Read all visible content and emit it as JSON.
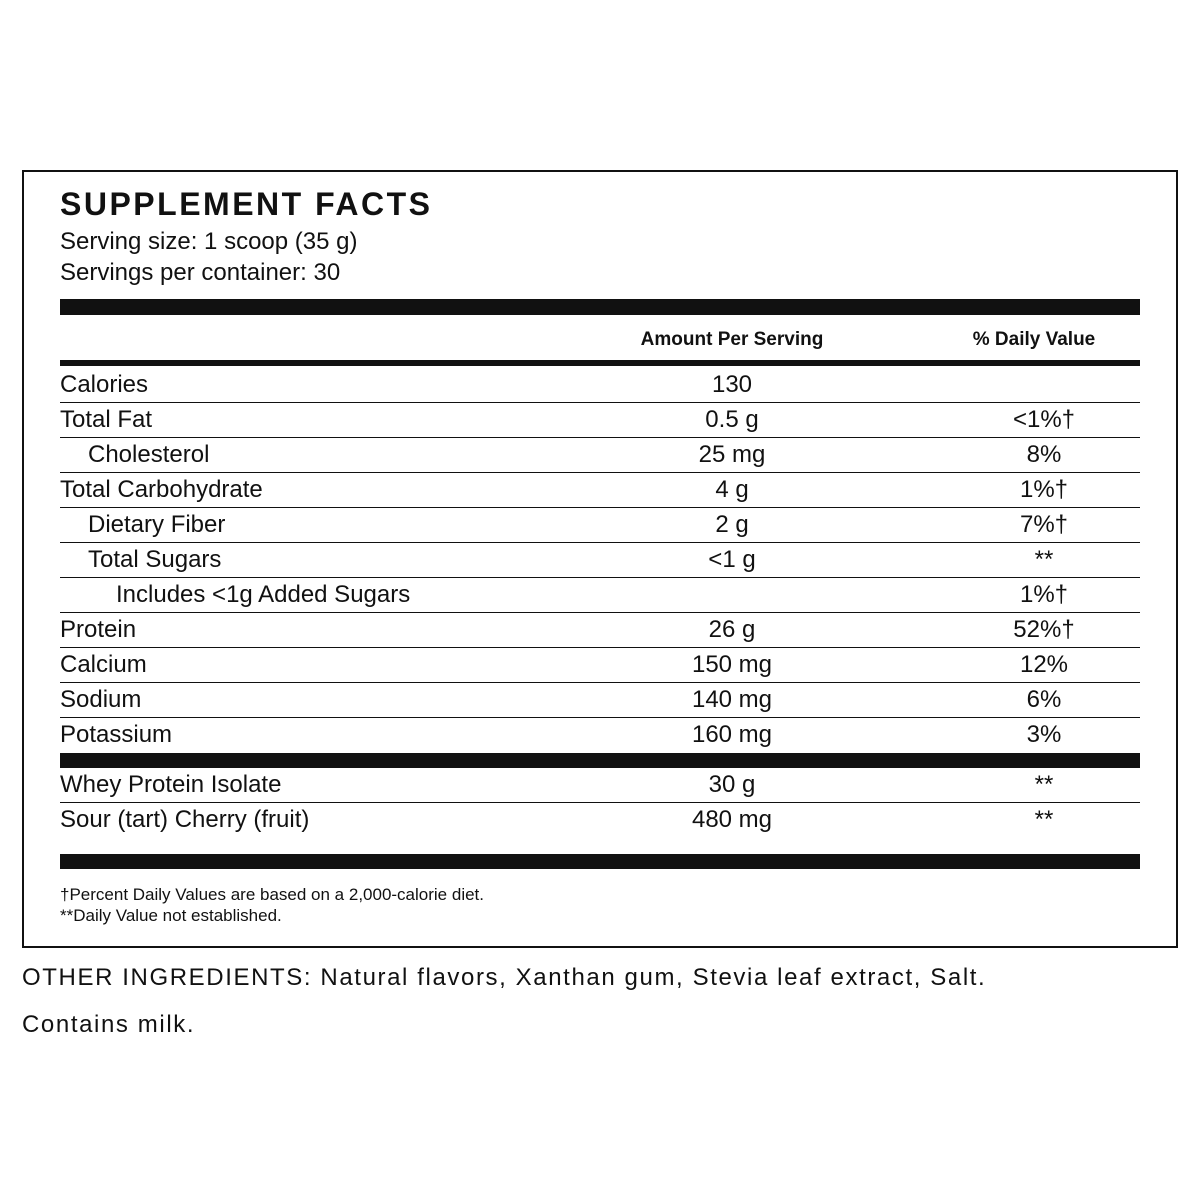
{
  "label": {
    "title": "SUPPLEMENT FACTS",
    "serving_size": "Serving size: 1 scoop (35 g)",
    "servings_per_container": "Servings per container: 30",
    "header": {
      "amount": "Amount Per Serving",
      "daily_value": "% Daily Value"
    },
    "rows": [
      {
        "name": "Calories",
        "amount": "130",
        "dv": null
      },
      {
        "name": "Total Fat",
        "amount": "0.5 g",
        "dv": "<1%†"
      },
      {
        "name": "Cholesterol",
        "amount": "25 mg",
        "dv": "8%"
      },
      {
        "name": "Total Carbohydrate",
        "amount": "4 g",
        "dv": "1%†"
      },
      {
        "name": "Dietary Fiber",
        "amount": "2 g",
        "dv": "7%†"
      },
      {
        "name": "Total Sugars",
        "amount": "<1 g",
        "dv": "**"
      },
      {
        "name": "Includes <1g Added Sugars",
        "amount": null,
        "dv": "1%†"
      },
      {
        "name": "Protein",
        "amount": "26 g",
        "dv": "52%†"
      },
      {
        "name": "Calcium",
        "amount": "150 mg",
        "dv": "12%"
      },
      {
        "name": "Sodium",
        "amount": "140 mg",
        "dv": "6%"
      },
      {
        "name": "Potassium",
        "amount": "160 mg",
        "dv": "3%"
      }
    ],
    "other_rows": [
      {
        "name": "Whey Protein Isolate",
        "amount": "30 g",
        "dv": "**"
      },
      {
        "name": "Sour (tart) Cherry (fruit)",
        "amount": "480 mg",
        "dv": "**"
      }
    ],
    "footnotes": [
      "†Percent Daily Values are based on a 2,000-calorie diet.",
      "**Daily Value not established."
    ]
  },
  "other_ingredients": "OTHER INGREDIENTS: Natural flavors, Xanthan gum, Stevia leaf extract, Salt.",
  "contains": "Contains milk."
}
